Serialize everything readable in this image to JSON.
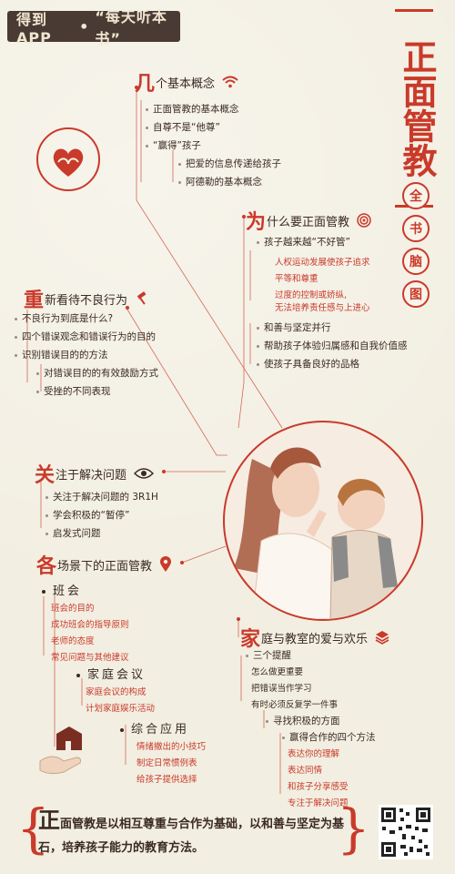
{
  "brand": {
    "name": "得到APP",
    "sep": "•",
    "slogan": "“每天听本书”"
  },
  "title": {
    "main": "正面管教",
    "sub": [
      "全",
      "书",
      "脑",
      "图"
    ]
  },
  "sections": {
    "concepts": {
      "first": "几",
      "rest": "个基本概念",
      "items": [
        "正面管教的基本概念",
        "自尊不是“他尊”",
        "“赢得”孩子",
        "把爱的信息传递给孩子",
        "阿德勒的基本概念"
      ]
    },
    "why": {
      "first": "为",
      "rest": "什么要正面管教",
      "items": [
        "孩子越来越“不好管”",
        "人权运动发展使孩子追求",
        "平等和尊重",
        "过度的控制或娇纵,",
        "无法培养责任感与上进心",
        "和善与坚定并行",
        "帮助孩子体验归属感和自我价值感",
        "使孩子具备良好的品格"
      ]
    },
    "rethink": {
      "first": "重",
      "rest": "新看待不良行为",
      "items": [
        "不良行为到底是什么?",
        "四个错误观念和错误行为的目的",
        "识别错误目的的方法",
        "对错误目的的有效鼓励方式",
        "受挫的不同表现"
      ]
    },
    "focus": {
      "first": "关",
      "rest": "注于解决问题",
      "items": [
        "关注于解决问题的 3R1H",
        "学会积极的“暂停”",
        "启发式问题"
      ]
    },
    "scenes": {
      "first": "各",
      "rest": "场景下的正面管教",
      "class": {
        "title": "班会",
        "items": [
          "班会的目的",
          "成功班会的指导原则",
          "老师的态度",
          "常见问题与其他建议"
        ]
      },
      "family": {
        "title": "家庭会议",
        "items": [
          "家庭会议的构成",
          "计划家庭娱乐活动"
        ]
      },
      "general": {
        "title": "综合应用",
        "items": [
          "情绪撤出的小技巧",
          "制定日常惯例表",
          "给孩子提供选择"
        ]
      }
    },
    "love": {
      "first": "家",
      "rest": "庭与教室的爱与欢乐",
      "items": [
        "三个提醒",
        "怎么做更重要",
        "把错误当作学习",
        "有时必须反复学一件事",
        "寻找积极的方面",
        "赢得合作的四个方法",
        "表达你的理解",
        "表达同情",
        "和孩子分享感受",
        "专注于解决问题"
      ]
    }
  },
  "footer": {
    "first": "正",
    "text": "面管教是以相互尊重与合作为基础，以和善与坚定为基石，培养孩子能力的教育方法。"
  },
  "colors": {
    "accent": "#c93a2a",
    "bg": "#f2eee1",
    "brand": "#4a3a34"
  }
}
